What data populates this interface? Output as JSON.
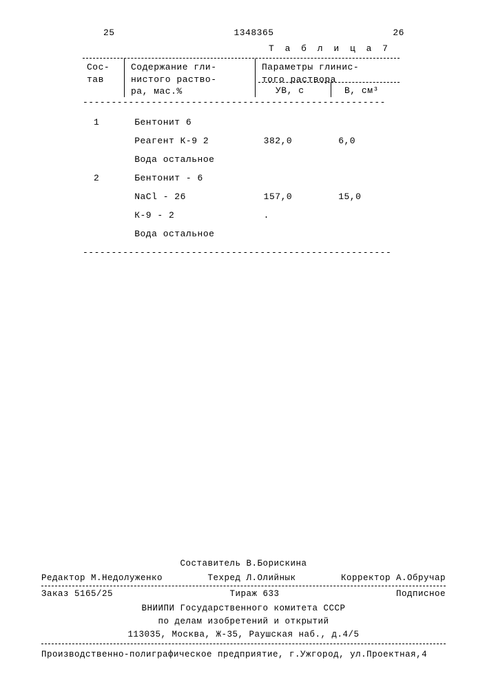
{
  "header": {
    "left_pagenum": "25",
    "doc_number": "1348365",
    "right_pagenum": "26"
  },
  "table": {
    "title": "Т а б л и ц а  7",
    "columns": {
      "c1a": "Сос-",
      "c1b": "тав",
      "c2a": "Содержание гли-",
      "c2b": "нистого раство-",
      "c2c": "ра, мас.%",
      "c3a": "Параметры глинис-",
      "c3b": "того раствора",
      "sub1": "УВ, с",
      "sub2": "В, см³"
    },
    "rows": [
      {
        "n": "1",
        "comp": "Бентонит 6",
        "uv": "",
        "b": ""
      },
      {
        "n": "",
        "comp": "Реагент К-9  2",
        "uv": "382,0",
        "b": "6,0"
      },
      {
        "n": "",
        "comp": "Вода остальное",
        "uv": "",
        "b": ""
      },
      {
        "n": "2",
        "comp": "Бентонит - 6",
        "uv": "",
        "b": ""
      },
      {
        "n": "",
        "comp": "NaCl - 26",
        "uv": "157,0",
        "b": "15,0"
      },
      {
        "n": "",
        "comp": "К-9 - 2",
        "uv": ".",
        "b": ""
      },
      {
        "n": "",
        "comp": "Вода остальное",
        "uv": "",
        "b": ""
      }
    ],
    "dash": "-----------------------------------------------------",
    "dash_long": "------------------------------------------------------"
  },
  "footer": {
    "compiler": "Составитель В.Борискина",
    "editor": "Редактор М.Недолуженко",
    "tech": "Техред Л.Олийнык",
    "corrector": "Корректор А.Обручар",
    "order": "Заказ 5165/25",
    "tirage": "Тираж 633",
    "subscribe": "Подписное",
    "org1": "ВНИИПИ Государственного комитета СССР",
    "org2": "по делам изобретений и открытий",
    "addr": "113035, Москва, Ж-35, Раушская наб., д.4/5",
    "bottom": "Производственно-полиграфическое предприятие, г.Ужгород, ул.Проектная,4"
  }
}
